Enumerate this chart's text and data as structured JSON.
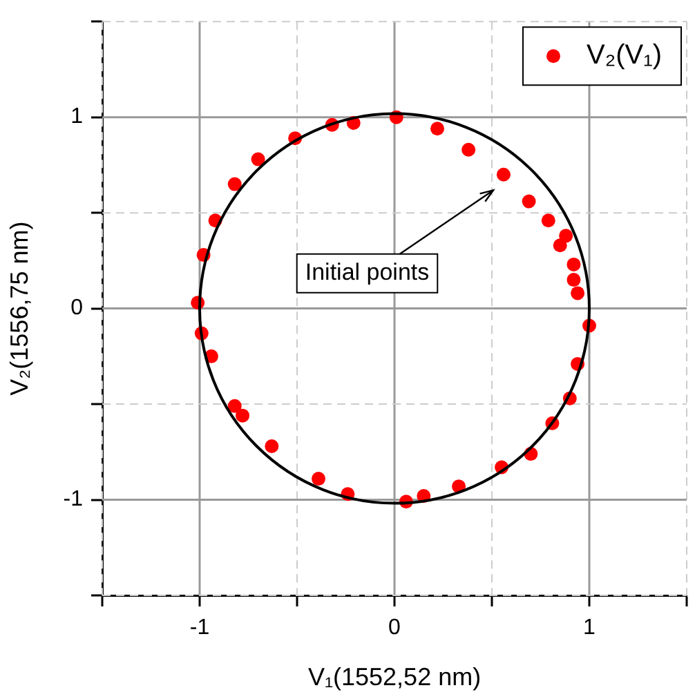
{
  "chart_data": {
    "type": "scatter",
    "xlabel": "V₁(1552,52 nm)",
    "ylabel": "V₂(1556,75 nm)",
    "xlim": [
      -1.5,
      1.5
    ],
    "ylim": [
      -1.5,
      1.5
    ],
    "xticks": [
      {
        "value": -1.5,
        "label": null
      },
      -1,
      {
        "value": -0.5,
        "label": null
      },
      0,
      {
        "value": 0.5,
        "label": null
      },
      1,
      {
        "value": 1.5,
        "label": null
      }
    ],
    "yticks": [
      {
        "value": -1.5,
        "label": null
      },
      -1,
      {
        "value": -0.5,
        "label": null
      },
      0,
      {
        "value": 0.5,
        "label": null
      },
      1,
      {
        "value": 1.5,
        "label": null
      }
    ],
    "grid": true,
    "legend": "top right",
    "marker": "circle",
    "annotations": [
      "Initial points"
    ],
    "series": [
      {
        "name": "V₂(V₁)",
        "type": "scatter",
        "color": "#ff0000",
        "x": [
          0.01,
          0.22,
          0.38,
          0.56,
          0.69,
          0.79,
          0.88,
          0.85,
          0.92,
          0.92,
          0.94,
          1.0,
          0.94,
          0.9,
          0.81,
          0.7,
          0.55,
          0.33,
          0.15,
          0.06,
          -0.24,
          -0.39,
          -0.63,
          -0.78,
          -0.82,
          -0.94,
          -0.99,
          -1.01,
          -0.98,
          -0.92,
          -0.82,
          -0.7,
          -0.51,
          -0.32,
          -0.21
        ],
        "values": [
          1.0,
          0.94,
          0.83,
          0.7,
          0.56,
          0.46,
          0.38,
          0.33,
          0.23,
          0.15,
          0.08,
          -0.09,
          -0.29,
          -0.47,
          -0.6,
          -0.76,
          -0.83,
          -0.93,
          -0.98,
          -1.01,
          -0.97,
          -0.89,
          -0.72,
          -0.56,
          -0.51,
          -0.25,
          -0.13,
          0.03,
          0.28,
          0.46,
          0.65,
          0.78,
          0.89,
          0.96,
          0.97
        ]
      }
    ]
  }
}
